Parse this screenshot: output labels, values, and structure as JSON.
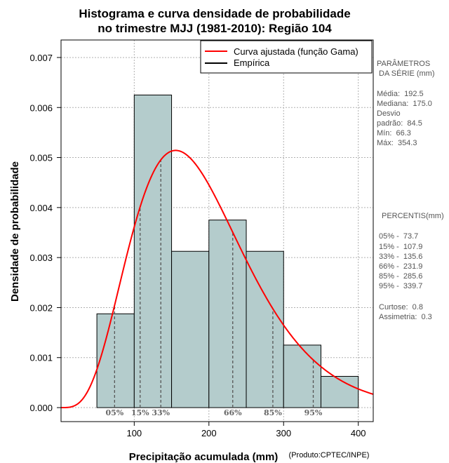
{
  "chart_data": {
    "type": "histogram",
    "title_lines": [
      "Histograma e curva densidade de probabilidade",
      "no trimestre MJJ (1981-2010): Região 104"
    ],
    "xlabel": "Precipitação acumulada (mm)",
    "ylabel": "Densidade de probabilidade",
    "credit": "(Produto:CPTEC/INPE)",
    "xlim": [
      2,
      420
    ],
    "ylim": [
      -0.00028,
      0.00735
    ],
    "xticks": [
      100,
      200,
      300,
      400
    ],
    "xtick_labels": [
      "100",
      "200",
      "300",
      "400"
    ],
    "yticks": [
      0.0,
      0.001,
      0.002,
      0.003,
      0.004,
      0.005,
      0.006,
      0.007
    ],
    "ytick_labels": [
      "0.000",
      "0.001",
      "0.002",
      "0.003",
      "0.004",
      "0.005",
      "0.006",
      "0.007"
    ],
    "grid": true,
    "bins": [
      {
        "start": 50,
        "end": 100,
        "density": 0.001875
      },
      {
        "start": 100,
        "end": 150,
        "density": 0.00625
      },
      {
        "start": 150,
        "end": 200,
        "density": 0.003125
      },
      {
        "start": 200,
        "end": 250,
        "density": 0.00375
      },
      {
        "start": 250,
        "end": 300,
        "density": 0.003125
      },
      {
        "start": 300,
        "end": 350,
        "density": 0.00125
      },
      {
        "start": 350,
        "end": 400,
        "density": 0.000625
      }
    ],
    "bar_color": "#b4cccc",
    "gamma_fit": {
      "shape": 5.18,
      "scale": 37.2,
      "color": "#ff0000"
    },
    "legend": {
      "position": "top-right",
      "entries": [
        {
          "label": "Curva ajustada (função Gama)",
          "color": "#ff0000"
        },
        {
          "label": "Empírica",
          "color": "#000000"
        }
      ]
    },
    "percentiles": [
      {
        "label": "05%",
        "value": 73.7
      },
      {
        "label": "15%",
        "value": 107.9
      },
      {
        "label": "33%",
        "value": 135.6
      },
      {
        "label": "66%",
        "value": 231.9
      },
      {
        "label": "85%",
        "value": 285.6
      },
      {
        "label": "95%",
        "value": 339.7
      }
    ],
    "side_panel": {
      "parameters_heading_lines": [
        "PARÂMETROS",
        " DA SÉRIE (mm)"
      ],
      "parameter_lines": [
        "Média:  192.5",
        "Mediana:  175.0",
        "Desvio",
        "padrão:  84.5",
        "Mín:  66.3",
        "Máx:  354.3"
      ],
      "percentis_heading": "PERCENTIS(mm)",
      "percentis_lines": [
        "05% -  73.7",
        "15% -  107.9",
        "33% -  135.6",
        "66% -  231.9",
        "85% -  285.6",
        "95% -  339.7"
      ],
      "stats_lines": [
        "Curtose:  0.8",
        "Assimetria:  0.3"
      ]
    }
  }
}
